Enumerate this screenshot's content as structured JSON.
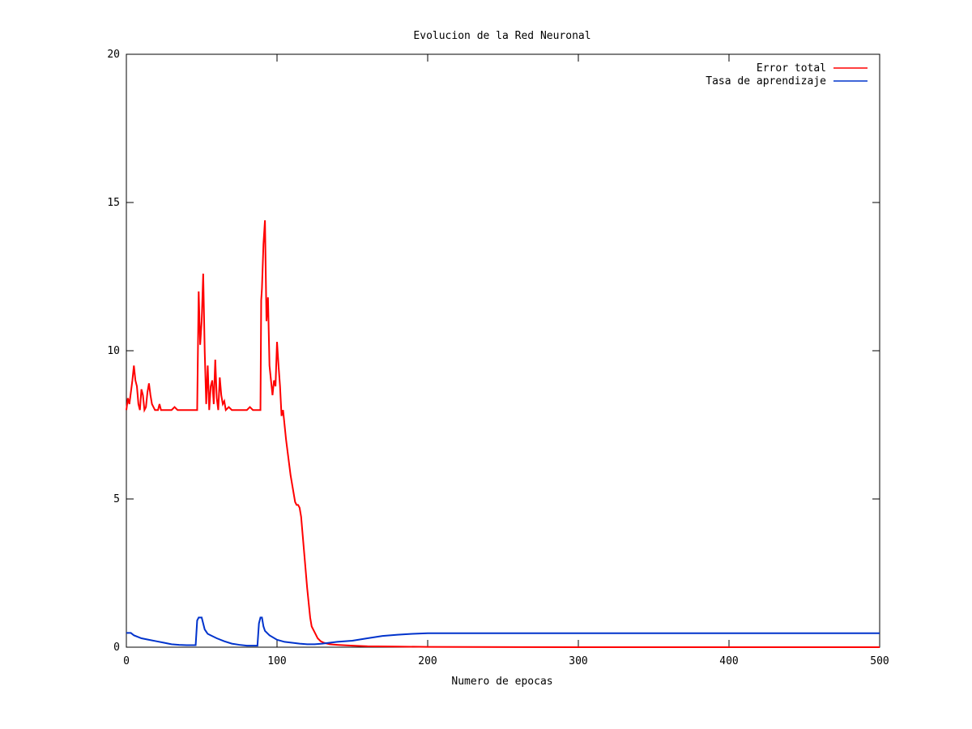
{
  "chart_data": {
    "type": "line",
    "title": "Evolucion de la Red Neuronal",
    "xlabel": "Numero de epocas",
    "ylabel": "",
    "xlim": [
      0,
      500
    ],
    "ylim": [
      0,
      20
    ],
    "xticks": [
      "0",
      "100",
      "200",
      "300",
      "400",
      "500"
    ],
    "yticks": [
      "0",
      "5",
      "10",
      "15",
      "20"
    ],
    "grid": false,
    "legend_position": "top-right",
    "series": [
      {
        "name": "Error total",
        "color": "#ff0000",
        "points": [
          [
            0,
            8.0
          ],
          [
            1,
            8.4
          ],
          [
            2,
            8.2
          ],
          [
            3,
            8.6
          ],
          [
            4,
            9.0
          ],
          [
            5,
            9.5
          ],
          [
            6,
            9.0
          ],
          [
            7,
            8.8
          ],
          [
            8,
            8.2
          ],
          [
            9,
            8.0
          ],
          [
            10,
            8.7
          ],
          [
            11,
            8.5
          ],
          [
            12,
            8.0
          ],
          [
            13,
            8.1
          ],
          [
            14,
            8.6
          ],
          [
            15,
            8.9
          ],
          [
            16,
            8.5
          ],
          [
            17,
            8.2
          ],
          [
            18,
            8.1
          ],
          [
            19,
            8.0
          ],
          [
            20,
            8.0
          ],
          [
            21,
            8.0
          ],
          [
            22,
            8.2
          ],
          [
            23,
            8.0
          ],
          [
            25,
            8.0
          ],
          [
            30,
            8.0
          ],
          [
            32,
            8.1
          ],
          [
            34,
            8.0
          ],
          [
            40,
            8.0
          ],
          [
            47,
            8.0
          ],
          [
            47.5,
            10.0
          ],
          [
            48,
            12.0
          ],
          [
            49,
            10.2
          ],
          [
            50,
            11.0
          ],
          [
            51,
            12.6
          ],
          [
            52,
            10.0
          ],
          [
            53,
            8.2
          ],
          [
            54,
            9.5
          ],
          [
            55,
            8.0
          ],
          [
            56,
            8.8
          ],
          [
            57,
            9.0
          ],
          [
            58,
            8.2
          ],
          [
            59,
            9.7
          ],
          [
            60,
            8.4
          ],
          [
            61,
            8.0
          ],
          [
            62,
            9.1
          ],
          [
            63,
            8.5
          ],
          [
            64,
            8.2
          ],
          [
            65,
            8.3
          ],
          [
            66,
            8.0
          ],
          [
            68,
            8.1
          ],
          [
            70,
            8.0
          ],
          [
            72,
            8.0
          ],
          [
            75,
            8.0
          ],
          [
            80,
            8.0
          ],
          [
            82,
            8.1
          ],
          [
            84,
            8.0
          ],
          [
            89,
            8.0
          ],
          [
            89.5,
            11.7
          ],
          [
            90,
            12.1
          ],
          [
            91,
            13.6
          ],
          [
            92,
            14.4
          ],
          [
            93,
            11.0
          ],
          [
            94,
            11.8
          ],
          [
            95,
            9.5
          ],
          [
            96,
            9.0
          ],
          [
            97,
            8.5
          ],
          [
            98,
            9.0
          ],
          [
            99,
            8.8
          ],
          [
            100,
            10.3
          ],
          [
            101,
            9.5
          ],
          [
            102,
            8.8
          ],
          [
            103,
            7.8
          ],
          [
            104,
            8.0
          ],
          [
            105,
            7.5
          ],
          [
            106,
            7.0
          ],
          [
            107,
            6.6
          ],
          [
            108,
            6.2
          ],
          [
            109,
            5.8
          ],
          [
            110,
            5.5
          ],
          [
            111,
            5.2
          ],
          [
            112,
            4.9
          ],
          [
            113,
            4.8
          ],
          [
            114,
            4.8
          ],
          [
            115,
            4.7
          ],
          [
            116,
            4.4
          ],
          [
            117,
            3.8
          ],
          [
            118,
            3.2
          ],
          [
            119,
            2.6
          ],
          [
            120,
            2.0
          ],
          [
            121,
            1.5
          ],
          [
            122,
            1.0
          ],
          [
            123,
            0.7
          ],
          [
            125,
            0.5
          ],
          [
            127,
            0.3
          ],
          [
            129,
            0.2
          ],
          [
            131,
            0.15
          ],
          [
            135,
            0.1
          ],
          [
            140,
            0.08
          ],
          [
            150,
            0.05
          ],
          [
            160,
            0.03
          ],
          [
            180,
            0.02
          ],
          [
            200,
            0.01
          ],
          [
            300,
            0.0
          ],
          [
            400,
            0.0
          ],
          [
            500,
            0.0
          ]
        ]
      },
      {
        "name": "Tasa de aprendizaje",
        "color": "#0033cc",
        "points": [
          [
            0,
            0.48
          ],
          [
            3,
            0.48
          ],
          [
            5,
            0.4
          ],
          [
            10,
            0.3
          ],
          [
            15,
            0.25
          ],
          [
            20,
            0.2
          ],
          [
            25,
            0.15
          ],
          [
            30,
            0.1
          ],
          [
            35,
            0.08
          ],
          [
            40,
            0.07
          ],
          [
            46,
            0.07
          ],
          [
            47,
            0.9
          ],
          [
            48,
            1.0
          ],
          [
            50,
            1.0
          ],
          [
            51,
            0.8
          ],
          [
            52,
            0.6
          ],
          [
            54,
            0.45
          ],
          [
            56,
            0.4
          ],
          [
            60,
            0.3
          ],
          [
            65,
            0.2
          ],
          [
            70,
            0.12
          ],
          [
            75,
            0.08
          ],
          [
            80,
            0.05
          ],
          [
            87,
            0.05
          ],
          [
            88,
            0.8
          ],
          [
            89,
            1.0
          ],
          [
            90,
            1.0
          ],
          [
            91,
            0.7
          ],
          [
            92,
            0.55
          ],
          [
            95,
            0.4
          ],
          [
            100,
            0.25
          ],
          [
            105,
            0.18
          ],
          [
            110,
            0.15
          ],
          [
            115,
            0.12
          ],
          [
            120,
            0.1
          ],
          [
            125,
            0.1
          ],
          [
            130,
            0.12
          ],
          [
            135,
            0.15
          ],
          [
            140,
            0.18
          ],
          [
            150,
            0.22
          ],
          [
            160,
            0.3
          ],
          [
            170,
            0.38
          ],
          [
            180,
            0.42
          ],
          [
            190,
            0.45
          ],
          [
            200,
            0.47
          ],
          [
            250,
            0.47
          ],
          [
            300,
            0.47
          ],
          [
            350,
            0.47
          ],
          [
            400,
            0.47
          ],
          [
            450,
            0.47
          ],
          [
            500,
            0.47
          ]
        ]
      }
    ]
  }
}
